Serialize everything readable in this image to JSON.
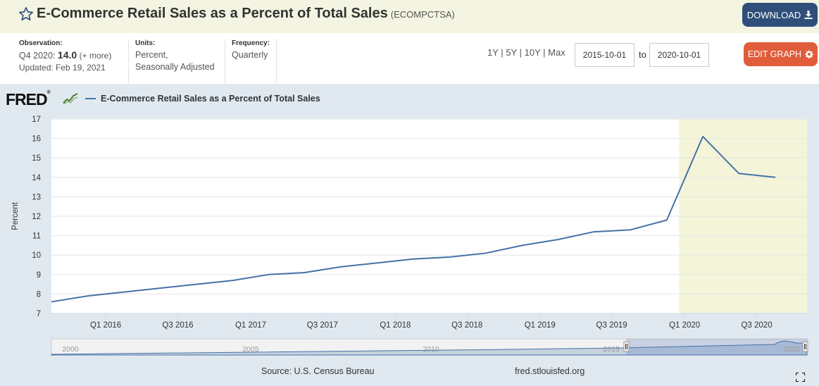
{
  "header": {
    "title": "E-Commerce Retail Sales as a Percent of Total Sales",
    "series_id": "(ECOMPCTSA)",
    "download_label": "DOWNLOAD"
  },
  "meta": {
    "observation_label": "Observation:",
    "observation_period": "Q4 2020:",
    "observation_value": "14.0",
    "observation_more": "(+ more)",
    "updated": "Updated: Feb 19, 2021",
    "units_label": "Units:",
    "units_line1": "Percent,",
    "units_line2": "Seasonally Adjusted",
    "frequency_label": "Frequency:",
    "frequency_value": "Quarterly"
  },
  "controls": {
    "range_1y": "1Y",
    "range_5y": "5Y",
    "range_10y": "10Y",
    "range_max": "Max",
    "sep": "|",
    "start_date": "2015-10-01",
    "to_label": "to",
    "end_date": "2020-10-01",
    "edit_label": "EDIT GRAPH"
  },
  "logo": {
    "text": "FRED",
    "registered": "®"
  },
  "footer": {
    "source": "Source: U.S. Census Bureau",
    "url": "fred.stlouisfed.org"
  },
  "colors": {
    "line": "#4572a7",
    "recession": "#f4f4d8",
    "download_bg": "#2f4f7a",
    "edit_bg": "#e05c3a",
    "title_bg": "#f4f4e2",
    "chart_bg": "#e1e9f0"
  },
  "chart_data": {
    "type": "line",
    "title": "E-Commerce Retail Sales as a Percent of Total Sales",
    "xlabel": "",
    "ylabel": "Percent",
    "ylim": [
      7,
      17
    ],
    "yticks": [
      7,
      8,
      9,
      10,
      11,
      12,
      13,
      14,
      15,
      16,
      17
    ],
    "grid": true,
    "legend_position": "top-left",
    "x": [
      "2015-10-01",
      "2016-01-01",
      "2016-04-01",
      "2016-07-01",
      "2016-10-01",
      "2017-01-01",
      "2017-04-01",
      "2017-07-01",
      "2017-10-01",
      "2018-01-01",
      "2018-04-01",
      "2018-07-01",
      "2018-10-01",
      "2019-01-01",
      "2019-04-01",
      "2019-07-01",
      "2019-10-01",
      "2020-01-01",
      "2020-04-01",
      "2020-07-01",
      "2020-10-01"
    ],
    "xtick_labels": [
      "Q1 2016",
      "Q3 2016",
      "Q1 2017",
      "Q3 2017",
      "Q1 2018",
      "Q3 2018",
      "Q1 2019",
      "Q3 2019",
      "Q1 2020",
      "Q3 2020"
    ],
    "series": [
      {
        "name": "E-Commerce Retail Sales as a Percent of Total Sales",
        "values": [
          7.6,
          7.9,
          8.1,
          8.3,
          8.5,
          8.7,
          9.0,
          9.1,
          9.4,
          9.6,
          9.8,
          9.9,
          10.1,
          10.5,
          10.8,
          11.2,
          11.3,
          11.8,
          16.1,
          14.2,
          14.0
        ]
      }
    ],
    "recession": {
      "start": "2020-01-01",
      "end": "2020-10-01"
    },
    "navigator": {
      "year_labels": [
        "2000",
        "2005",
        "2010",
        "2015",
        "2020"
      ]
    }
  }
}
